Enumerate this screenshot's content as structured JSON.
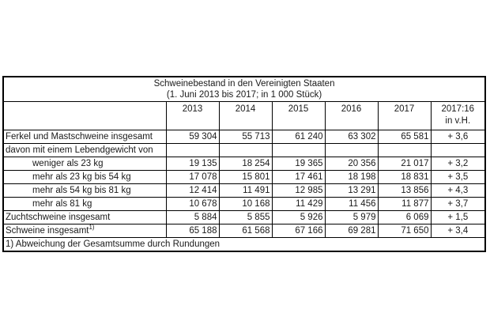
{
  "chart_data": {
    "type": "table",
    "title": "Schweinebestand in den Vereinigten Staaten",
    "subtitle": "(1. Juni 2013 bis 2017; in 1 000 Stück)",
    "year_columns": [
      "2013",
      "2014",
      "2015",
      "2016",
      "2017"
    ],
    "change_column": {
      "line1": "2017:16",
      "line2": "in v.H."
    },
    "rows": [
      {
        "label": "Ferkel und Mastschweine insgesamt",
        "indent": false,
        "values": [
          "59 304",
          "55 713",
          "61 240",
          "63 302",
          "65 581"
        ],
        "change": "+ 3,6"
      },
      {
        "label": "davon mit einem Lebendgewicht von",
        "indent": false,
        "values": [
          "",
          "",
          "",
          "",
          ""
        ],
        "change": ""
      },
      {
        "label": "weniger als 23 kg",
        "indent": true,
        "values": [
          "19 135",
          "18 254",
          "19 365",
          "20 356",
          "21 017"
        ],
        "change": "+ 3,2"
      },
      {
        "label": "mehr als 23 kg bis 54 kg",
        "indent": true,
        "values": [
          "17 078",
          "15 801",
          "17 461",
          "18 198",
          "18 831"
        ],
        "change": "+ 3,5"
      },
      {
        "label": "mehr als 54 kg bis 81 kg",
        "indent": true,
        "values": [
          "12 414",
          "11 491",
          "12 985",
          "13 291",
          "13 856"
        ],
        "change": "+ 4,3"
      },
      {
        "label": "mehr als 81 kg",
        "indent": true,
        "values": [
          "10 678",
          "10 168",
          "11 429",
          "11 456",
          "11 877"
        ],
        "change": "+ 3,7"
      },
      {
        "label": "Zuchtschweine insgesamt",
        "indent": false,
        "values": [
          "5 884",
          "5 855",
          "5 926",
          "5 979",
          "6 069"
        ],
        "change": "+ 1,5"
      },
      {
        "label": "Schweine insgesamt",
        "label_superscript": "1)",
        "indent": false,
        "values": [
          "65 188",
          "61 568",
          "67 166",
          "69 281",
          "71 650"
        ],
        "change": "+ 3,4"
      }
    ],
    "footnote": "1) Abweichung der Gesamtsumme durch Rundungen",
    "colors": {
      "border": "#000000",
      "text": "#1a1a1a",
      "background": "#ffffff"
    }
  }
}
